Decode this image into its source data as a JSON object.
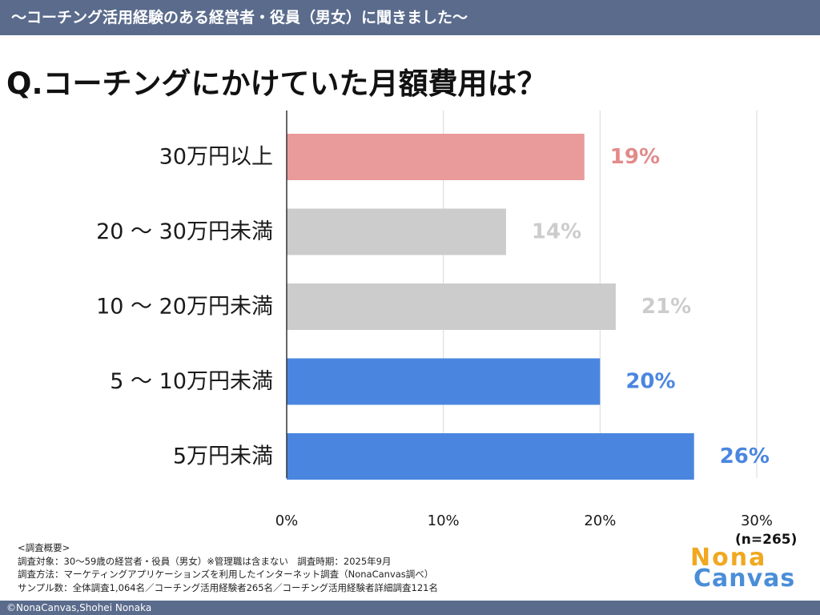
{
  "banner": "〜コーチング活用経験のある経営者・役員（男女）に聞きました〜",
  "question": "Q.コーチングにかけていた月額費用は？",
  "chart_data": {
    "type": "bar",
    "orientation": "horizontal",
    "categories": [
      "30万円以上",
      "20 〜 30万円未満",
      "10 〜 20万円未満",
      "5 〜 10万円未満",
      "5万円未満"
    ],
    "values": [
      19,
      14,
      21,
      20,
      26
    ],
    "value_labels": [
      "19%",
      "14%",
      "21%",
      "20%",
      "26%"
    ],
    "bar_colors": [
      "#e99a9a",
      "#cccccc",
      "#cccccc",
      "#4a86e0",
      "#4a86e0"
    ],
    "label_colors": [
      "#e28b8b",
      "#cccccc",
      "#cccccc",
      "#4a86e0",
      "#4a86e0"
    ],
    "xlim": [
      0,
      30
    ],
    "xticks": [
      0,
      10,
      20,
      30
    ],
    "xtick_labels": [
      "0%",
      "10%",
      "20%",
      "30%"
    ],
    "grid": true
  },
  "sample_size": "(n=265)",
  "survey": {
    "heading": "<調査概要>",
    "line1": "調査対象：30〜59歳の経営者・役員（男女）※管理職は含まない　調査時期：2025年9月",
    "line2": "調査方法：マーケティングアプリケーションズを利用したインターネット調査（NonaCanvas調べ）",
    "line3": "サンプル数：全体調査1,064名／コーチング活用経験者265名／コーチング活用経験者詳細調査121名"
  },
  "logo": {
    "line1": "Nona",
    "line2": "Canvas"
  },
  "footer": "©NonaCanvas,Shohei Nonaka"
}
